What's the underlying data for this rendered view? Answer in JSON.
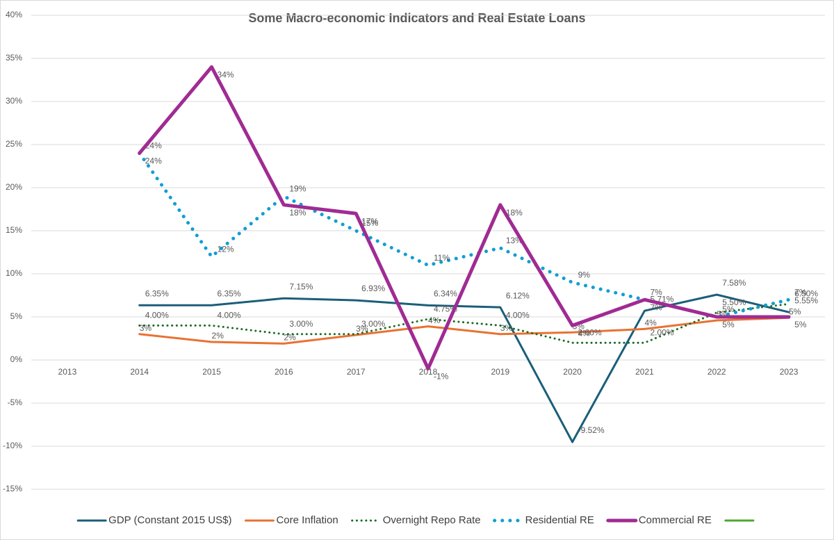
{
  "chart_data": {
    "type": "line",
    "title": "Some Macro-economic  Indicators and Real Estate Loans",
    "categories": [
      "2013",
      "2014",
      "2015",
      "2016",
      "2017",
      "2018",
      "2019",
      "2020",
      "2021",
      "2022",
      "2023"
    ],
    "ylim": [
      -15,
      40
    ],
    "yticks": [
      {
        "value": -15,
        "label": "-15%"
      },
      {
        "value": -10,
        "label": "-10%"
      },
      {
        "value": -5,
        "label": "-5%"
      },
      {
        "value": 0,
        "label": "0%"
      },
      {
        "value": 5,
        "label": "5%"
      },
      {
        "value": 10,
        "label": "10%"
      },
      {
        "value": 15,
        "label": "15%"
      },
      {
        "value": 20,
        "label": "20%"
      },
      {
        "value": 25,
        "label": "25%"
      },
      {
        "value": 30,
        "label": "30%"
      },
      {
        "value": 35,
        "label": "35%"
      },
      {
        "value": 40,
        "label": "40%"
      }
    ],
    "grid": true,
    "legend": "bottom",
    "series": [
      {
        "name": "GDP (Constant 2015 US$)",
        "color": "#1b5e7a",
        "style": "solid",
        "width": 3,
        "values": [
          null,
          6.35,
          6.35,
          7.15,
          6.93,
          6.34,
          6.12,
          -9.52,
          5.71,
          7.58,
          5.55
        ],
        "value_labels": [
          null,
          "6.35%",
          "6.35%",
          "7.15%",
          "6.93%",
          "6.34%",
          "6.12%",
          "-9.52%",
          "5.71%",
          "7.58%",
          "5.55%"
        ]
      },
      {
        "name": "Core Inflation",
        "color": "#e97132",
        "style": "solid",
        "width": 3,
        "values": [
          null,
          3.0,
          2.1,
          1.9,
          2.9,
          3.9,
          3.0,
          3.2,
          3.6,
          4.6,
          4.9
        ],
        "value_labels": [
          null,
          "3%",
          "2%",
          "2%",
          "3%",
          "4%",
          "3%",
          "3%",
          "4%",
          "5%",
          "5%"
        ]
      },
      {
        "name": "Overnight Repo Rate",
        "color": "#196b24",
        "style": "dotted",
        "width": 3,
        "values": [
          null,
          4.0,
          4.0,
          3.0,
          3.0,
          4.75,
          4.0,
          2.0,
          2.0,
          5.5,
          6.5
        ],
        "value_labels": [
          null,
          "4.00%",
          "4.00%",
          "3.00%",
          "3.00%",
          "4.75%",
          "4.00%",
          "2.00%",
          "2.00%",
          "5.50%",
          "6.50%"
        ]
      },
      {
        "name": "Residential RE",
        "color": "#0f9ed5",
        "style": "dotted",
        "width": 5,
        "values": [
          null,
          24,
          12,
          19,
          15,
          11,
          13,
          9,
          7,
          5,
          7
        ],
        "value_labels": [
          null,
          "24%",
          "12%",
          "19%",
          "15%",
          "11%",
          "13%",
          "9%",
          "7%",
          "5%",
          "7%"
        ]
      },
      {
        "name": "Commercial RE",
        "color": "#a02b93",
        "style": "solid",
        "width": 5,
        "values": [
          null,
          24,
          34,
          18,
          17,
          -1,
          18,
          4,
          7,
          5,
          5
        ],
        "value_labels": [
          null,
          "24%",
          "34%",
          "18%",
          "17%",
          "-1%",
          "18%",
          "4%",
          "7%",
          "5%",
          "5%"
        ]
      },
      {
        "name": null,
        "color": "#4ea72e",
        "style": "solid",
        "width": 3,
        "values": [
          null,
          null,
          null,
          null,
          null,
          null,
          null,
          null,
          null,
          null,
          null
        ]
      }
    ]
  }
}
